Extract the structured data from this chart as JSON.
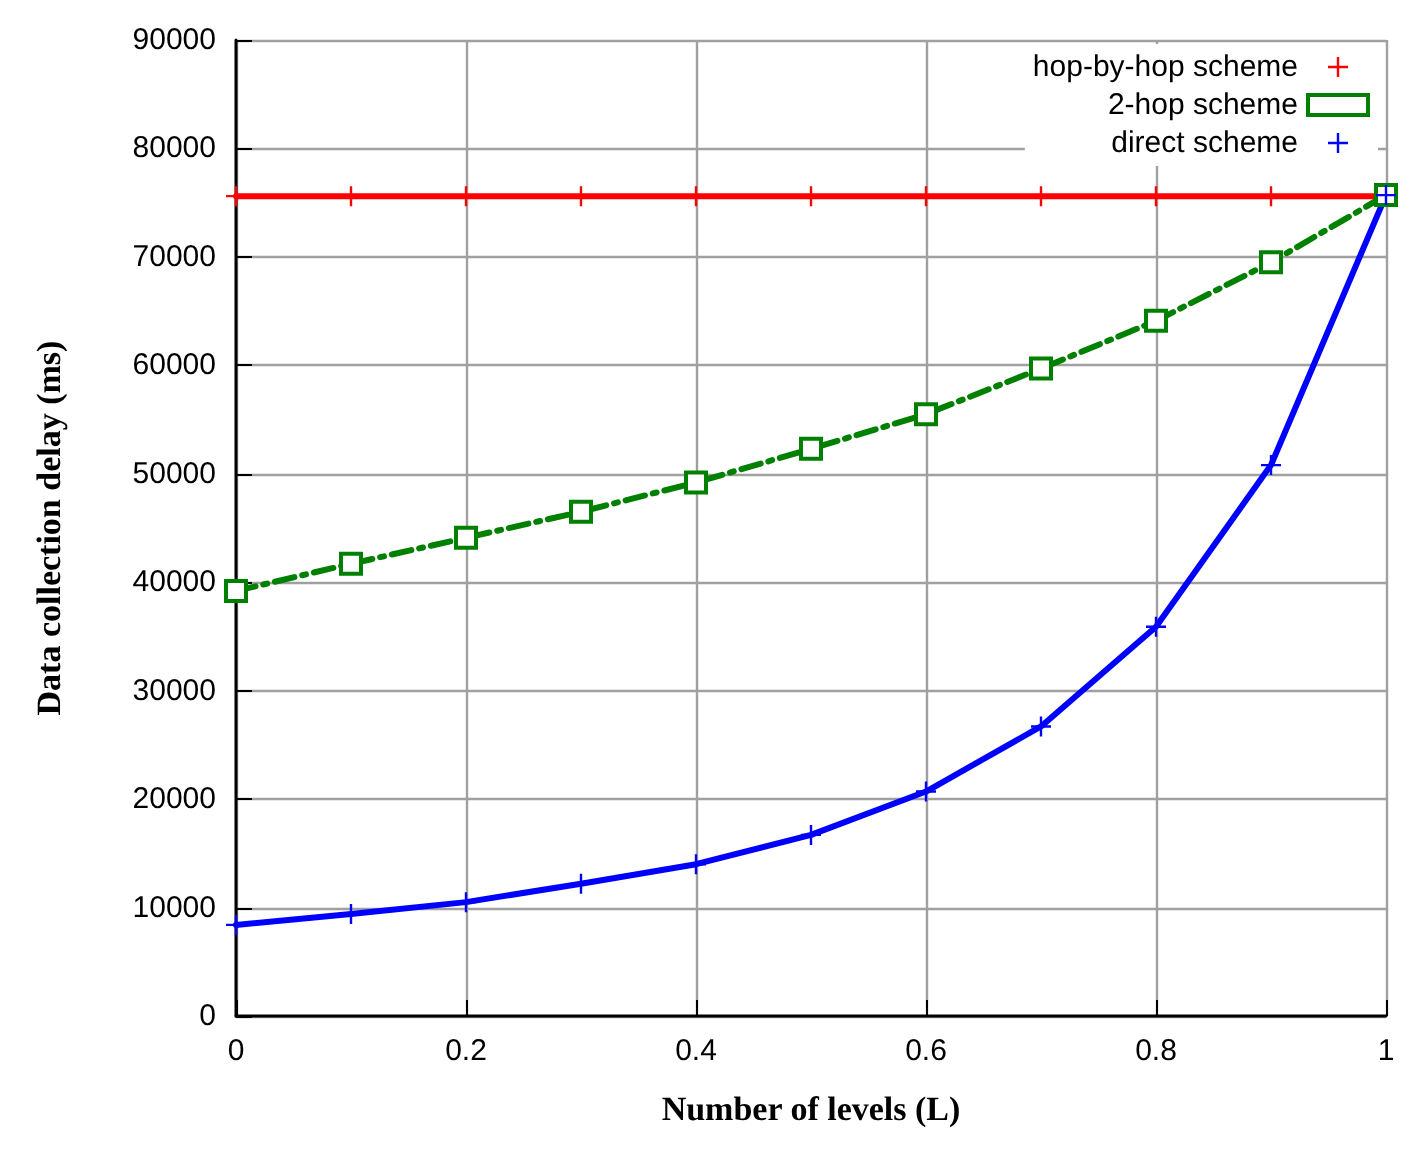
{
  "chart_data": {
    "type": "line",
    "xlabel": "Number of levels (L)",
    "ylabel": "Data collection delay (ms)",
    "x": [
      0,
      0.1,
      0.2,
      0.3,
      0.4,
      0.5,
      0.6,
      0.7,
      0.8,
      0.9,
      1
    ],
    "xlim": [
      0,
      1
    ],
    "xticks": [
      0,
      0.2,
      0.4,
      0.6,
      0.8,
      1
    ],
    "ylim": [
      0,
      90000
    ],
    "yticks": [
      0,
      10000,
      20000,
      30000,
      40000,
      50000,
      60000,
      70000,
      80000,
      90000
    ],
    "grid": true,
    "legend": "top right",
    "series": [
      {
        "name": "hop-by-hop scheme",
        "color": "#ff0000",
        "marker": "cross",
        "line_style": "solid",
        "values": [
          75600,
          75600,
          75600,
          75600,
          75600,
          75600,
          75600,
          75600,
          75600,
          75600,
          75600
        ]
      },
      {
        "name": "2-hop scheme",
        "color": "#008000",
        "marker": "square",
        "line_style": "dashed",
        "values": [
          39200,
          41700,
          44100,
          46500,
          49200,
          52300,
          55500,
          59700,
          64100,
          69500,
          75700
        ]
      },
      {
        "name": "direct scheme",
        "color": "#0000ff",
        "marker": "cross",
        "line_style": "solid",
        "values": [
          8400,
          9400,
          10500,
          12200,
          14000,
          16700,
          20700,
          26700,
          35900,
          50800,
          75700
        ]
      }
    ]
  }
}
